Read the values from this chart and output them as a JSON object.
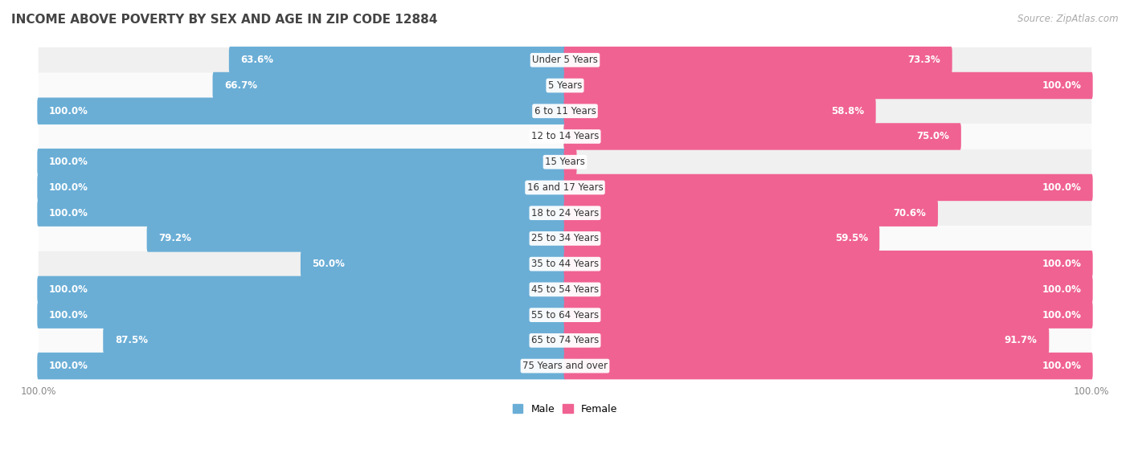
{
  "title": "INCOME ABOVE POVERTY BY SEX AND AGE IN ZIP CODE 12884",
  "source": "Source: ZipAtlas.com",
  "categories": [
    "Under 5 Years",
    "5 Years",
    "6 to 11 Years",
    "12 to 14 Years",
    "15 Years",
    "16 and 17 Years",
    "18 to 24 Years",
    "25 to 34 Years",
    "35 to 44 Years",
    "45 to 54 Years",
    "55 to 64 Years",
    "65 to 74 Years",
    "75 Years and over"
  ],
  "male_values": [
    63.6,
    66.7,
    100.0,
    0.0,
    100.0,
    100.0,
    100.0,
    79.2,
    50.0,
    100.0,
    100.0,
    87.5,
    100.0
  ],
  "female_values": [
    73.3,
    100.0,
    58.8,
    75.0,
    0.0,
    100.0,
    70.6,
    59.5,
    100.0,
    100.0,
    100.0,
    91.7,
    100.0
  ],
  "male_color": "#6aaed6",
  "female_color": "#f06292",
  "male_label": "Male",
  "female_label": "Female",
  "background_color": "#ffffff",
  "row_even_color": "#f0f0f0",
  "row_odd_color": "#fafafa",
  "title_fontsize": 11,
  "label_fontsize": 8.5,
  "tick_fontsize": 8.5,
  "source_fontsize": 8.5,
  "axis_label_color": "#888888",
  "text_dark": "#555555"
}
